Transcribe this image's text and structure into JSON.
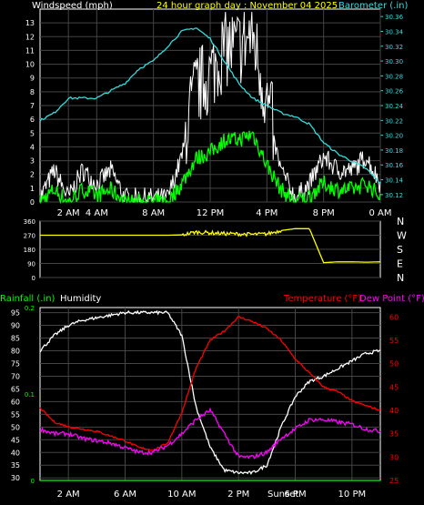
{
  "colors": {
    "background": "#000000",
    "panel_border": "#ffffff",
    "grid": "#444444",
    "windspeed": "#ffffff",
    "gust_fill": "#ffffff",
    "wind_avg": "#00ff00",
    "barometer": "#33dddd",
    "direction": "#ffff00",
    "rainfall": "#00ff00",
    "humidity": "#ffffff",
    "temperature": "#ff0000",
    "dew_point": "#ff00ff",
    "left_axis_text": "#ffffff",
    "title_text": "#ffff00"
  },
  "labels": {
    "windspeed": "Windspeed (mph)",
    "title": "24 hour graph day : November 04 2025",
    "barometer": "Barometer (.in)",
    "rainfall": "Rainfall (.in)",
    "humidity": "Humidity",
    "temperature": "Temperature (°F)",
    "dew_point": "Dew Point (°F)",
    "sunset": "Sunset"
  },
  "chart_data": [
    {
      "type": "line",
      "title": "24 hour graph day : November 04 2025",
      "x_hours": [
        0,
        1,
        2,
        3,
        4,
        5,
        6,
        7,
        8,
        9,
        10,
        11,
        12,
        13,
        14,
        15,
        16,
        17,
        18,
        19,
        20,
        21,
        22,
        23,
        24
      ],
      "x_tick_labels": [
        "2 AM",
        "4 AM",
        "8 AM",
        "12 PM",
        "4 PM",
        "8 PM",
        "0 AM"
      ],
      "x_tick_hours": [
        2,
        4,
        8,
        12,
        16,
        20,
        24
      ],
      "ylabel_left": "Windspeed (mph)",
      "ylim_left": [
        0,
        14
      ],
      "y_ticks_left": [
        0,
        1,
        2,
        3,
        4,
        5,
        6,
        7,
        8,
        9,
        10,
        11,
        12,
        13
      ],
      "ylabel_right": "Barometer (.in)",
      "ylim_right": [
        30.11,
        30.37
      ],
      "y_ticks_right": [
        30.12,
        30.14,
        30.16,
        30.18,
        30.2,
        30.22,
        30.24,
        30.26,
        30.28,
        30.3,
        30.32,
        30.34,
        30.36
      ],
      "series": [
        {
          "name": "Windspeed (mph)",
          "axis": "left",
          "values": [
            0,
            2,
            0,
            2,
            1,
            2,
            0,
            0,
            0,
            0,
            3,
            7,
            8,
            10,
            10,
            11,
            6,
            2,
            0,
            1,
            3,
            2,
            2,
            3,
            1
          ]
        },
        {
          "name": "Barometer (.in)",
          "axis": "right",
          "values": [
            30.22,
            30.23,
            30.25,
            30.25,
            30.25,
            30.26,
            30.27,
            30.29,
            30.3,
            30.32,
            30.34,
            30.345,
            30.33,
            30.3,
            30.27,
            30.25,
            30.24,
            30.23,
            30.225,
            30.215,
            30.19,
            30.175,
            30.165,
            30.155,
            30.135
          ]
        }
      ]
    },
    {
      "type": "line",
      "ylim": [
        0,
        360
      ],
      "y_ticks": [
        0,
        90,
        180,
        270,
        360
      ],
      "direction_labels": [
        "N",
        "W",
        "S",
        "E",
        "N"
      ],
      "series": [
        {
          "name": "Wind direction",
          "values": [
            270,
            270,
            270,
            270,
            270,
            270,
            270,
            270,
            270,
            270,
            272,
            290,
            285,
            280,
            278,
            275,
            278,
            300,
            312,
            312,
            95,
            100,
            100,
            98,
            100
          ]
        }
      ]
    },
    {
      "type": "line",
      "x_hours": [
        0,
        1,
        2,
        3,
        4,
        5,
        6,
        7,
        8,
        9,
        10,
        11,
        12,
        13,
        14,
        15,
        16,
        17,
        18,
        19,
        20,
        21,
        22,
        23,
        24
      ],
      "x_tick_labels": [
        "2 AM",
        "6 AM",
        "10 AM",
        "2 PM",
        "6 PM",
        "10 PM"
      ],
      "x_tick_hours": [
        2,
        6,
        10,
        14,
        18,
        22
      ],
      "ylim_left": [
        29,
        97
      ],
      "y_ticks_left": [
        30,
        35,
        40,
        45,
        50,
        55,
        60,
        65,
        70,
        75,
        80,
        85,
        90,
        95
      ],
      "ylim_rain": [
        0,
        0.2
      ],
      "y_ticks_rain": [
        0,
        0.1,
        0.2
      ],
      "ylim_right": [
        25,
        62
      ],
      "y_ticks_right": [
        25,
        30,
        35,
        40,
        45,
        50,
        55,
        60
      ],
      "series": [
        {
          "name": "Humidity",
          "axis": "left",
          "values": [
            80,
            86,
            90,
            92,
            93,
            94,
            95,
            95,
            95,
            95,
            86,
            58,
            42,
            33,
            32,
            32,
            35,
            50,
            62,
            68,
            70,
            73,
            76,
            79,
            80
          ]
        },
        {
          "name": "Temperature (°F)",
          "axis": "right",
          "values": [
            40.5,
            37.5,
            36.5,
            36,
            35.5,
            34.5,
            33.5,
            32,
            31.5,
            33,
            39.5,
            49,
            55,
            57,
            60,
            59,
            57.5,
            55,
            51,
            48,
            45,
            44,
            42,
            41,
            40
          ]
        },
        {
          "name": "Dew Point (°F)",
          "axis": "right",
          "values": [
            36,
            35,
            35,
            34,
            33.5,
            33,
            32,
            31,
            31,
            32.5,
            35,
            38,
            40,
            35,
            30,
            30,
            31,
            34,
            36,
            38,
            38,
            37.5,
            37,
            36,
            35.5
          ]
        },
        {
          "name": "Rainfall (.in)",
          "axis": "rain",
          "values": [
            0,
            0,
            0,
            0,
            0,
            0,
            0,
            0,
            0,
            0,
            0,
            0,
            0,
            0,
            0,
            0,
            0,
            0,
            0,
            0,
            0,
            0,
            0,
            0,
            0
          ]
        }
      ]
    }
  ]
}
